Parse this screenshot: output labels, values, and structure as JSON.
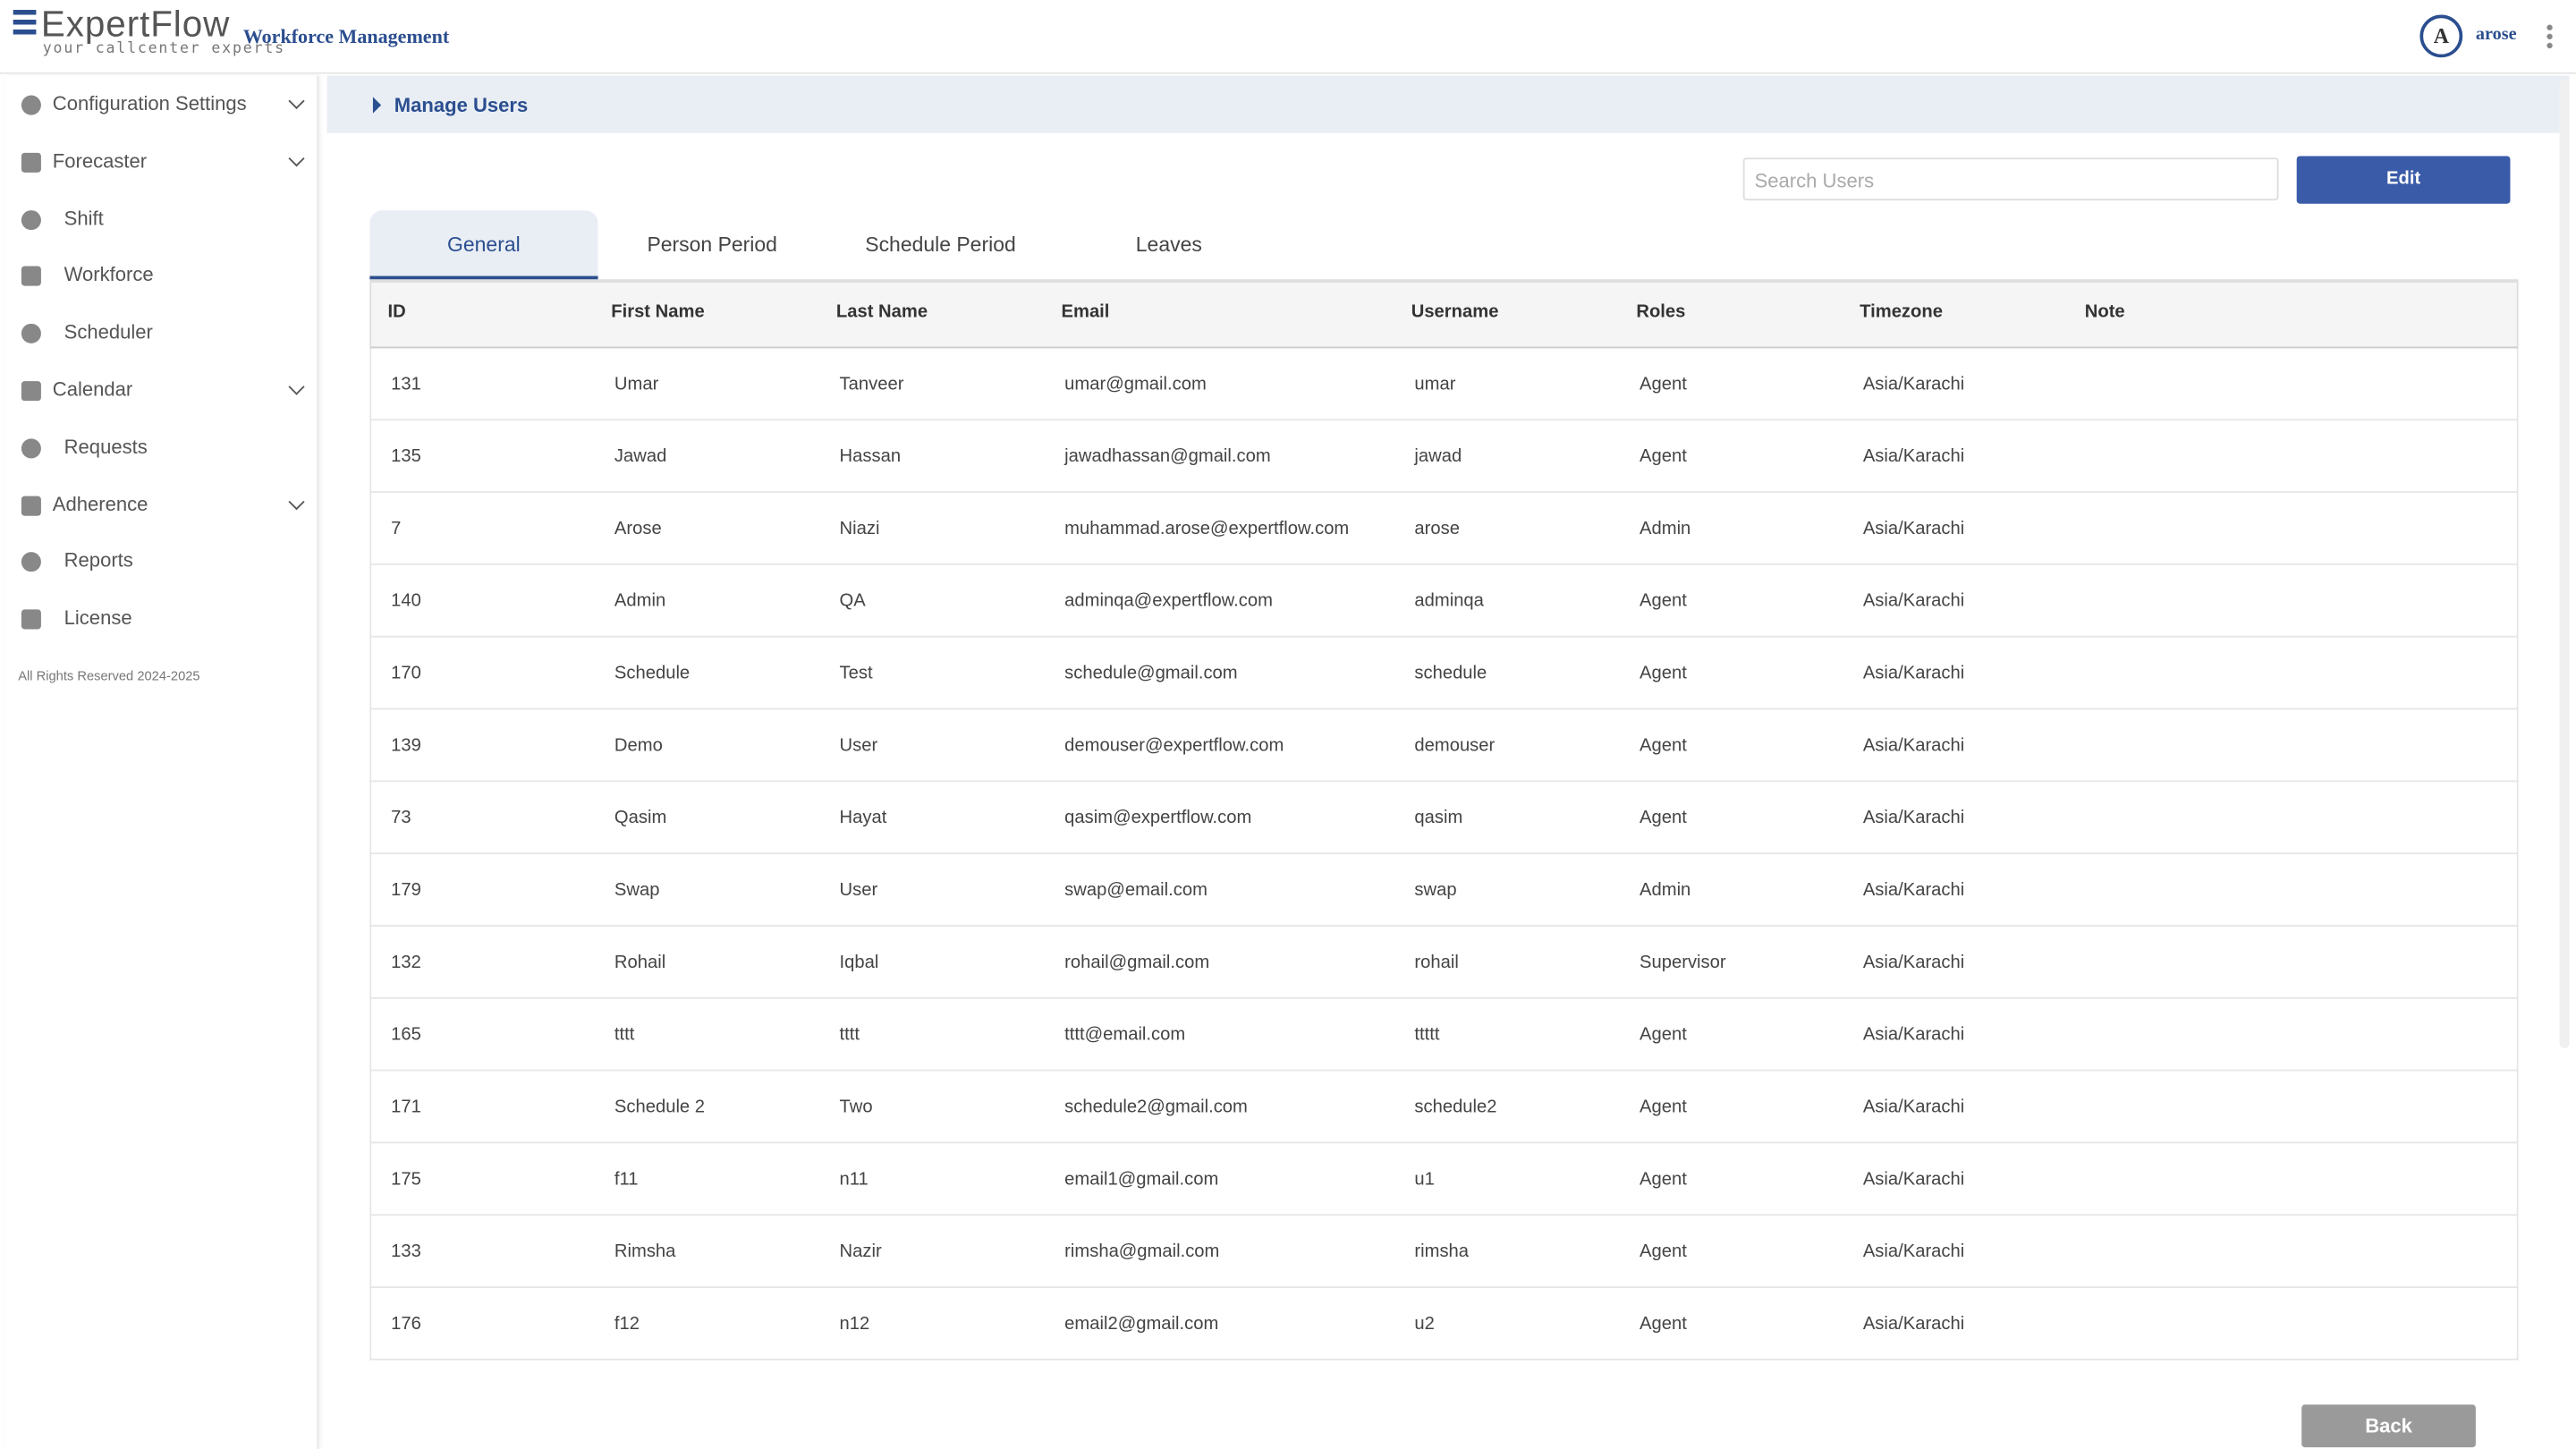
{
  "header": {
    "logo": "ExpertFlow",
    "tagline": "your callcenter experts",
    "app_title": "Workforce Management",
    "avatar": "A",
    "user": "arose"
  },
  "sidebar": {
    "items": [
      {
        "label": "Configuration Settings",
        "expandable": true
      },
      {
        "label": "Forecaster",
        "expandable": true
      },
      {
        "label": "Shift",
        "expandable": false
      },
      {
        "label": "Workforce",
        "expandable": false
      },
      {
        "label": "Scheduler",
        "expandable": false
      },
      {
        "label": "Calendar",
        "expandable": true
      },
      {
        "label": "Requests",
        "expandable": false
      },
      {
        "label": "Adherence",
        "expandable": true
      },
      {
        "label": "Reports",
        "expandable": false
      },
      {
        "label": "License",
        "expandable": false
      }
    ],
    "footer": "All Rights Reserved 2024-2025"
  },
  "page": {
    "breadcrumb": "Manage Users",
    "search_placeholder": "Search Users",
    "edit_button": "Edit",
    "back_button": "Back"
  },
  "tabs": [
    "General",
    "Person Period",
    "Schedule Period",
    "Leaves"
  ],
  "table": {
    "columns": [
      "ID",
      "First Name",
      "Last Name",
      "Email",
      "Username",
      "Roles",
      "Timezone",
      "Note"
    ],
    "rows": [
      [
        "131",
        "Umar",
        "Tanveer",
        "umar@gmail.com",
        "umar",
        "Agent",
        "Asia/Karachi"
      ],
      [
        "135",
        "Jawad",
        "Hassan",
        "jawadhassan@gmail.com",
        "jawad",
        "Agent",
        "Asia/Karachi"
      ],
      [
        "7",
        "Arose",
        "Niazi",
        "muhammad.arose@expertflow.com",
        "arose",
        "Admin",
        "Asia/Karachi"
      ],
      [
        "140",
        "Admin",
        "QA",
        "adminqa@expertflow.com",
        "adminqa",
        "Agent",
        "Asia/Karachi"
      ],
      [
        "170",
        "Schedule",
        "Test",
        "schedule@gmail.com",
        "schedule",
        "Agent",
        "Asia/Karachi"
      ],
      [
        "139",
        "Demo",
        "User",
        "demouser@expertflow.com",
        "demouser",
        "Agent",
        "Asia/Karachi"
      ],
      [
        "73",
        "Qasim",
        "Hayat",
        "qasim@expertflow.com",
        "qasim",
        "Agent",
        "Asia/Karachi"
      ],
      [
        "179",
        "Swap",
        "User",
        "swap@email.com",
        "swap",
        "Admin",
        "Asia/Karachi"
      ],
      [
        "132",
        "Rohail",
        "Iqbal",
        "rohail@gmail.com",
        "rohail",
        "Supervisor",
        "Asia/Karachi"
      ],
      [
        "165",
        "tttt",
        "tttt",
        "tttt@email.com",
        "ttttt",
        "Agent",
        "Asia/Karachi"
      ],
      [
        "171",
        "Schedule 2",
        "Two",
        "schedule2@gmail.com",
        "schedule2",
        "Agent",
        "Asia/Karachi"
      ],
      [
        "175",
        "f11",
        "n11",
        "email1@gmail.com",
        "u1",
        "Agent",
        "Asia/Karachi"
      ],
      [
        "133",
        "Rimsha",
        "Nazir",
        "rimsha@gmail.com",
        "rimsha",
        "Agent",
        "Asia/Karachi"
      ],
      [
        "176",
        "f12",
        "n12",
        "email2@gmail.com",
        "u2",
        "Agent",
        "Asia/Karachi"
      ]
    ]
  }
}
